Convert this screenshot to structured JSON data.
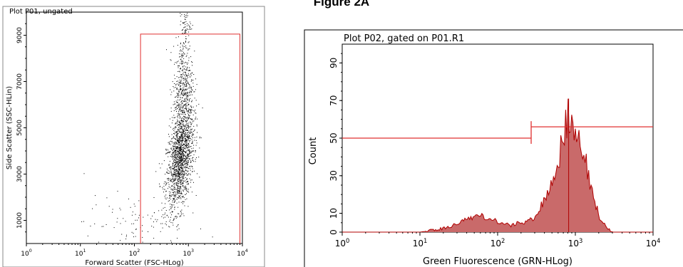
{
  "figure": {
    "title": "Figure 2A"
  },
  "colors": {
    "gate": "#e03030",
    "histogram_fill": "#c96a6a",
    "histogram_line": "#b00000",
    "dots": "#000000",
    "frame": "#000000"
  },
  "chart_data": [
    {
      "type": "scatter",
      "title": "Plot P01, ungated",
      "xlabel": "Forward Scatter (FSC-HLog)",
      "ylabel": "Side Scatter (SSC-HLin)",
      "x_scale": "log",
      "xlim": [
        1,
        10000
      ],
      "ylim": [
        0,
        10000
      ],
      "x_ticks": [
        {
          "value": 1,
          "base": "10",
          "exp": "0"
        },
        {
          "value": 10,
          "base": "10",
          "exp": "1"
        },
        {
          "value": 100,
          "base": "10",
          "exp": "2"
        },
        {
          "value": 1000,
          "base": "10",
          "exp": "3"
        },
        {
          "value": 10000,
          "base": "10",
          "exp": "4"
        }
      ],
      "y_ticks": [
        {
          "value": 1000,
          "label": "1000"
        },
        {
          "value": 3000,
          "label": "3000"
        },
        {
          "value": 5000,
          "label": "5000"
        },
        {
          "value": 7000,
          "label": "7000"
        },
        {
          "value": 9000,
          "label": "9000"
        }
      ],
      "gate": {
        "name": "R1",
        "x_min": 130,
        "x_max": 9000,
        "y_min": 0,
        "y_max": 9050
      },
      "clusters": [
        {
          "points": 1500,
          "center": [
            700,
            3600
          ],
          "log_spread_x": 0.13,
          "spread_y": 1000,
          "slope": 0.45
        },
        {
          "points": 550,
          "center": [
            780,
            6600
          ],
          "log_spread_x": 0.09,
          "spread_y": 1200,
          "slope": 0.3
        },
        {
          "points": 60,
          "center": [
            850,
            9500
          ],
          "log_spread_x": 0.05,
          "spread_y": 350,
          "slope": 0.0
        },
        {
          "points": 90,
          "center": [
            90,
            900
          ],
          "log_spread_x": 0.45,
          "spread_y": 600,
          "slope": 0.0
        }
      ]
    },
    {
      "type": "histogram",
      "title": "Plot P02, gated on P01.R1",
      "xlabel": "Green Fluorescence (GRN-HLog)",
      "ylabel": "Count",
      "x_scale": "log",
      "xlim": [
        1,
        10000
      ],
      "ylim": [
        0,
        100
      ],
      "x_ticks": [
        {
          "value": 1,
          "base": "10",
          "exp": "0"
        },
        {
          "value": 10,
          "base": "10",
          "exp": "1"
        },
        {
          "value": 100,
          "base": "10",
          "exp": "2"
        },
        {
          "value": 1000,
          "base": "10",
          "exp": "3"
        },
        {
          "value": 10000,
          "base": "10",
          "exp": "4"
        }
      ],
      "y_ticks": [
        {
          "value": 0,
          "label": "0"
        },
        {
          "value": 10,
          "label": "10"
        },
        {
          "value": 30,
          "label": "30"
        },
        {
          "value": 50,
          "label": "50"
        },
        {
          "value": 70,
          "label": "70"
        },
        {
          "value": 90,
          "label": "90"
        }
      ],
      "markers": [
        {
          "x_min": 1,
          "x_max": 270,
          "y": 50
        },
        {
          "x_min": 270,
          "x_max": 10000,
          "y": 56
        }
      ],
      "profile": [
        {
          "x": 1,
          "count": 0
        },
        {
          "x": 10,
          "count": 0
        },
        {
          "x": 15,
          "count": 1
        },
        {
          "x": 25,
          "count": 3
        },
        {
          "x": 40,
          "count": 7
        },
        {
          "x": 55,
          "count": 9
        },
        {
          "x": 80,
          "count": 7
        },
        {
          "x": 120,
          "count": 4
        },
        {
          "x": 200,
          "count": 4
        },
        {
          "x": 300,
          "count": 8
        },
        {
          "x": 400,
          "count": 16
        },
        {
          "x": 500,
          "count": 28
        },
        {
          "x": 600,
          "count": 38
        },
        {
          "x": 700,
          "count": 50
        },
        {
          "x": 820,
          "count": 64
        },
        {
          "x": 900,
          "count": 55
        },
        {
          "x": 1050,
          "count": 50
        },
        {
          "x": 1300,
          "count": 42
        },
        {
          "x": 1600,
          "count": 22
        },
        {
          "x": 2000,
          "count": 9
        },
        {
          "x": 2500,
          "count": 2
        },
        {
          "x": 3000,
          "count": 0
        },
        {
          "x": 10000,
          "count": 0
        }
      ],
      "peak": {
        "x": 820,
        "count": 71
      }
    }
  ]
}
